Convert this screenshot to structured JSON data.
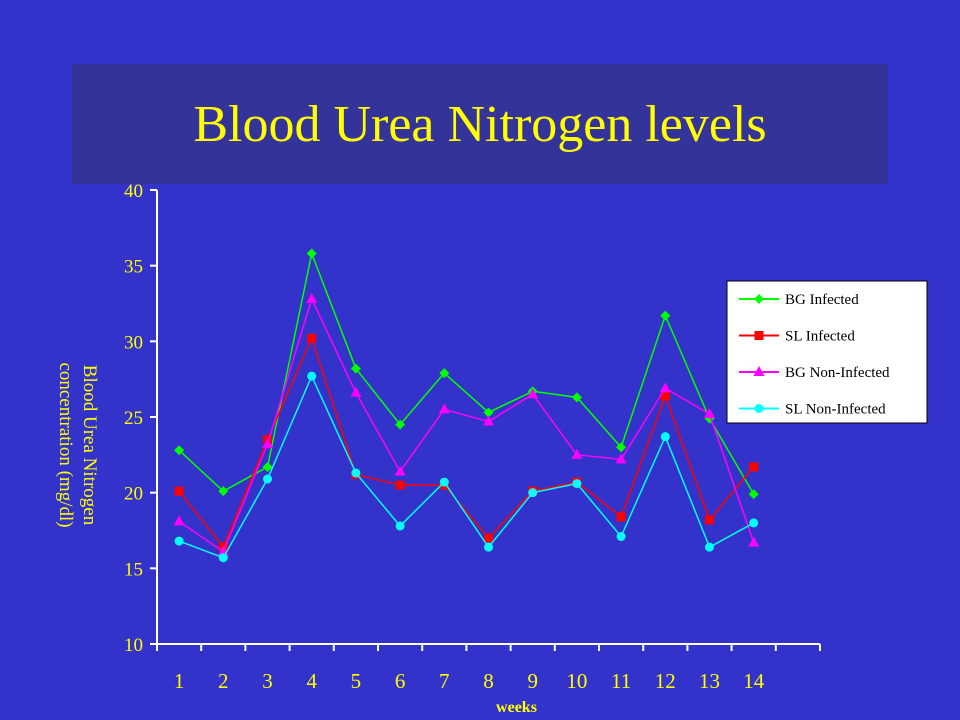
{
  "slide": {
    "title": "Blood Urea Nitrogen levels",
    "background_color": "#3333CC",
    "title_band_color": "#333399",
    "title_color": "#FFFF00"
  },
  "chart_data": {
    "type": "line",
    "title": "",
    "xlabel": "weeks",
    "ylabel_lines": [
      "Blood Urea Nitrogen",
      "concentration (mg/dl)"
    ],
    "x": [
      1,
      2,
      3,
      4,
      5,
      6,
      7,
      8,
      9,
      10,
      11,
      12,
      13,
      14
    ],
    "x_tick_labels": [
      "1",
      "2",
      "3",
      "4",
      "5",
      "6",
      "7",
      "8",
      "9",
      "10",
      "11",
      "12",
      "13",
      "14"
    ],
    "ylim": [
      10,
      40
    ],
    "y_ticks": [
      10,
      15,
      20,
      25,
      30,
      35,
      40
    ],
    "y_tick_labels": [
      "10",
      "15",
      "20",
      "25",
      "30",
      "35",
      "40"
    ],
    "grid": false,
    "legend_position": "right",
    "legend_background": "#FFFFFF",
    "axis_color": "#FFFFFF",
    "text_color": "#FFFF00",
    "series": [
      {
        "name": "BG Infected",
        "color": "#00FF00",
        "marker": "diamond",
        "values": [
          22.8,
          20.1,
          21.7,
          35.8,
          28.2,
          24.5,
          27.9,
          25.3,
          26.7,
          26.3,
          23.0,
          31.7,
          24.9,
          19.9
        ]
      },
      {
        "name": "SL Infected",
        "color": "#FF0000",
        "marker": "square",
        "values": [
          20.1,
          16.4,
          23.5,
          30.2,
          21.2,
          20.5,
          20.5,
          17.0,
          20.1,
          20.7,
          18.4,
          26.4,
          18.2,
          21.7
        ]
      },
      {
        "name": "BG Non-Infected",
        "color": "#FF00FF",
        "marker": "triangle",
        "values": [
          18.1,
          16.1,
          23.2,
          32.8,
          26.6,
          21.4,
          25.5,
          24.7,
          26.5,
          22.5,
          22.2,
          26.9,
          25.2,
          16.7
        ]
      },
      {
        "name": "SL Non-Infected",
        "color": "#00FFFF",
        "marker": "circle",
        "values": [
          16.8,
          15.7,
          20.9,
          27.7,
          21.3,
          17.8,
          20.7,
          16.4,
          20.0,
          20.6,
          17.1,
          23.7,
          16.4,
          18.0
        ]
      }
    ]
  }
}
